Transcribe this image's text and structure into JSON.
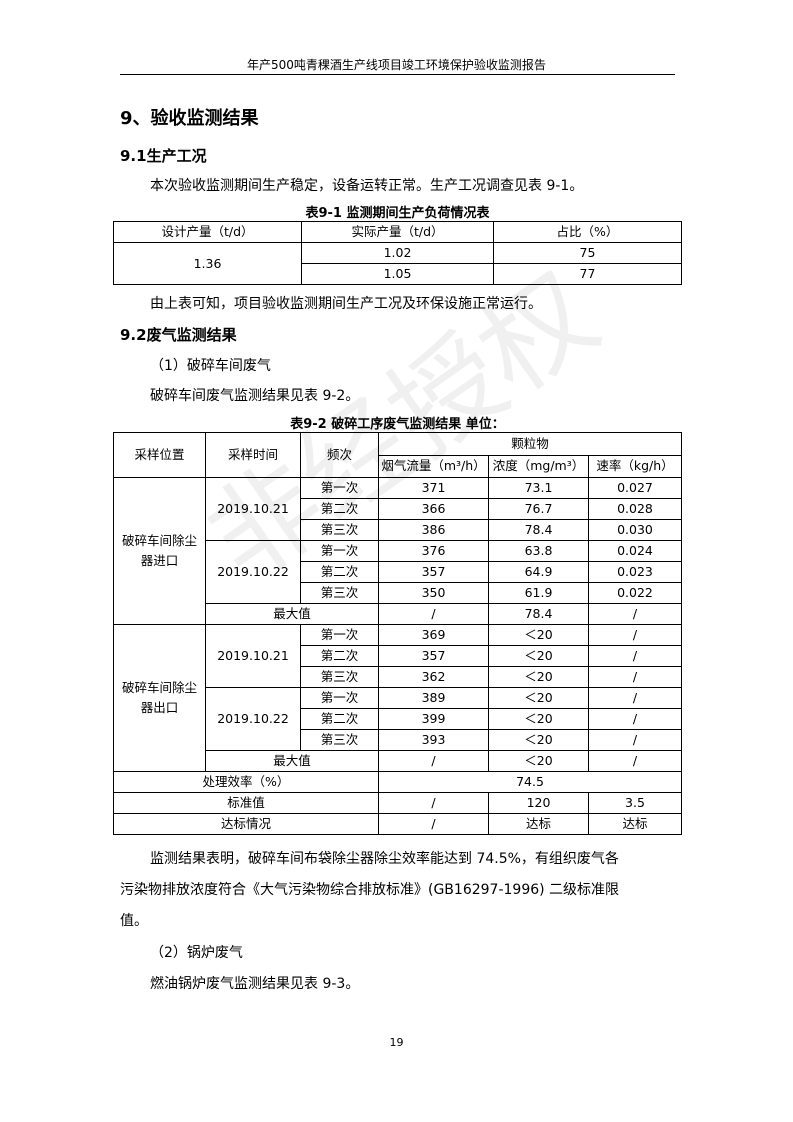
{
  "header": "年产500吨青稞酒生产线项目竣工环境保护验收监测报告",
  "section_title": "9、验收监测结果",
  "s91": {
    "title": "9.1生产工况",
    "intro": "本次验收监测期间生产稳定，设备运转正常。生产工况调查见表 9-1。",
    "table_caption": "表9-1  监测期间生产负荷情况表",
    "headers": [
      "设计产量（t/d）",
      "实际产量（t/d）",
      "占比（%）"
    ],
    "design": "1.36",
    "rows": [
      [
        "1.02",
        "75"
      ],
      [
        "1.05",
        "77"
      ]
    ],
    "conclusion": "由上表可知，项目验收监测期间生产工况及环保设施正常运行。"
  },
  "s92": {
    "title": "9.2废气监测结果",
    "sub1": "（1）破碎车间废气",
    "intro": "破碎车间废气监测结果见表 9-2。",
    "table_caption": "表9-2  破碎工序废气监测结果   单位：",
    "headers": {
      "location": "采样位置",
      "time": "采样时间",
      "freq": "频次",
      "pm": "颗粒物",
      "flow": "烟气流量（m³/h）",
      "conc": "浓度（mg/m³）",
      "rate": "速率（kg/h）"
    },
    "groups": [
      {
        "location": "破碎车间除尘器进口",
        "dates": [
          {
            "date": "2019.10.21",
            "rows": [
              [
                "第一次",
                "371",
                "73.1",
                "0.027"
              ],
              [
                "第二次",
                "366",
                "76.7",
                "0.028"
              ],
              [
                "第三次",
                "386",
                "78.4",
                "0.030"
              ]
            ]
          },
          {
            "date": "2019.10.22",
            "rows": [
              [
                "第一次",
                "376",
                "63.8",
                "0.024"
              ],
              [
                "第二次",
                "357",
                "64.9",
                "0.023"
              ],
              [
                "第三次",
                "350",
                "61.9",
                "0.022"
              ]
            ]
          }
        ],
        "max": [
          "最大值",
          "/",
          "78.4",
          "/"
        ]
      },
      {
        "location": "破碎车间除尘器出口",
        "dates": [
          {
            "date": "2019.10.21",
            "rows": [
              [
                "第一次",
                "369",
                "＜20",
                "/"
              ],
              [
                "第二次",
                "357",
                "＜20",
                "/"
              ],
              [
                "第三次",
                "362",
                "＜20",
                "/"
              ]
            ]
          },
          {
            "date": "2019.10.22",
            "rows": [
              [
                "第一次",
                "389",
                "＜20",
                "/"
              ],
              [
                "第二次",
                "399",
                "＜20",
                "/"
              ],
              [
                "第三次",
                "393",
                "＜20",
                "/"
              ]
            ]
          }
        ],
        "max": [
          "最大值",
          "/",
          "＜20",
          "/"
        ]
      }
    ],
    "efficiency": {
      "label": "处理效率（%）",
      "value": "74.5"
    },
    "standard": {
      "label": "标准值",
      "values": [
        "/",
        "120",
        "3.5"
      ]
    },
    "compliance": {
      "label": "达标情况",
      "values": [
        "/",
        "达标",
        "达标"
      ]
    },
    "conclusion1": "监测结果表明，破碎车间布袋除尘器除尘效率能达到 74.5%，有组织废气各",
    "conclusion2": "污染物排放浓度符合《大气污染物综合排放标准》(GB16297-1996) 二级标准限",
    "conclusion3": "值。",
    "sub2": "（2）锅炉废气",
    "next": "燃油锅炉废气监测结果见表 9-3。"
  },
  "watermark": "非经授权",
  "page_number": "19"
}
